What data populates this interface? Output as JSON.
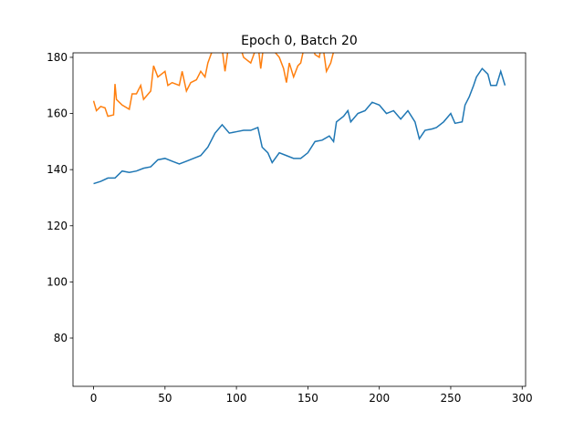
{
  "chart_data": {
    "type": "line",
    "title": "Epoch 0, Batch 20",
    "xlim": [
      -14.4,
      302.4
    ],
    "ylim": [
      62.8,
      181.6
    ],
    "xticks": [
      0,
      50,
      100,
      150,
      200,
      250,
      300
    ],
    "yticks": [
      80,
      100,
      120,
      140,
      160,
      180
    ],
    "series": [
      {
        "color": "#1f77b4",
        "x": [
          0,
          5,
          10,
          15,
          20,
          25,
          30,
          35,
          40,
          45,
          50,
          55,
          60,
          65,
          70,
          75,
          80,
          85,
          90,
          95,
          100,
          105,
          110,
          115,
          118,
          122,
          125,
          130,
          135,
          140,
          145,
          150,
          155,
          160,
          165,
          168,
          170,
          175,
          178,
          180,
          185,
          190,
          195,
          200,
          205,
          210,
          215,
          220,
          225,
          228,
          232,
          237,
          240,
          245,
          250,
          253,
          258,
          260,
          263,
          266,
          268,
          272,
          276,
          278,
          282,
          285,
          288
        ],
        "values": [
          135,
          135.8,
          137,
          137,
          139.5,
          139,
          139.5,
          140.5,
          141,
          143.5,
          144,
          143,
          142,
          143,
          144,
          145,
          148,
          153,
          156,
          153,
          153.5,
          154,
          154,
          155,
          148,
          146,
          142.5,
          146,
          145,
          144,
          144,
          146,
          150,
          150.5,
          152,
          150,
          157,
          159,
          161,
          157,
          160,
          161,
          164,
          163,
          160,
          161,
          158,
          161,
          157,
          151,
          154,
          154.5,
          155,
          157,
          160,
          156.5,
          157,
          163,
          166,
          170,
          173,
          176,
          174,
          170,
          170,
          175,
          170
        ]
      },
      {
        "color": "#ff7f0e",
        "x": [
          0,
          2,
          5,
          8,
          10,
          14,
          15,
          16,
          20,
          25,
          27,
          30,
          33,
          35,
          40,
          42,
          45,
          50,
          52,
          55,
          60,
          62,
          65,
          68,
          72,
          75,
          78,
          80,
          85,
          90,
          92,
          95,
          100,
          105,
          110,
          115,
          117,
          120,
          125,
          130,
          133,
          135,
          137,
          140,
          143,
          145,
          148,
          152,
          155,
          158,
          160,
          163,
          166,
          168
        ],
        "values": [
          164.5,
          161,
          162.5,
          162,
          159,
          159.5,
          170.5,
          165,
          163,
          161.5,
          167,
          167,
          170,
          165,
          168,
          177,
          173,
          175,
          170,
          171,
          170,
          175,
          168,
          171,
          172,
          175,
          173,
          178,
          185,
          183,
          175,
          186,
          188,
          180,
          178,
          185,
          176,
          188,
          183,
          180,
          176,
          171,
          178,
          173,
          177,
          178,
          185,
          186,
          181,
          180,
          186,
          175,
          178,
          182
        ]
      }
    ]
  }
}
